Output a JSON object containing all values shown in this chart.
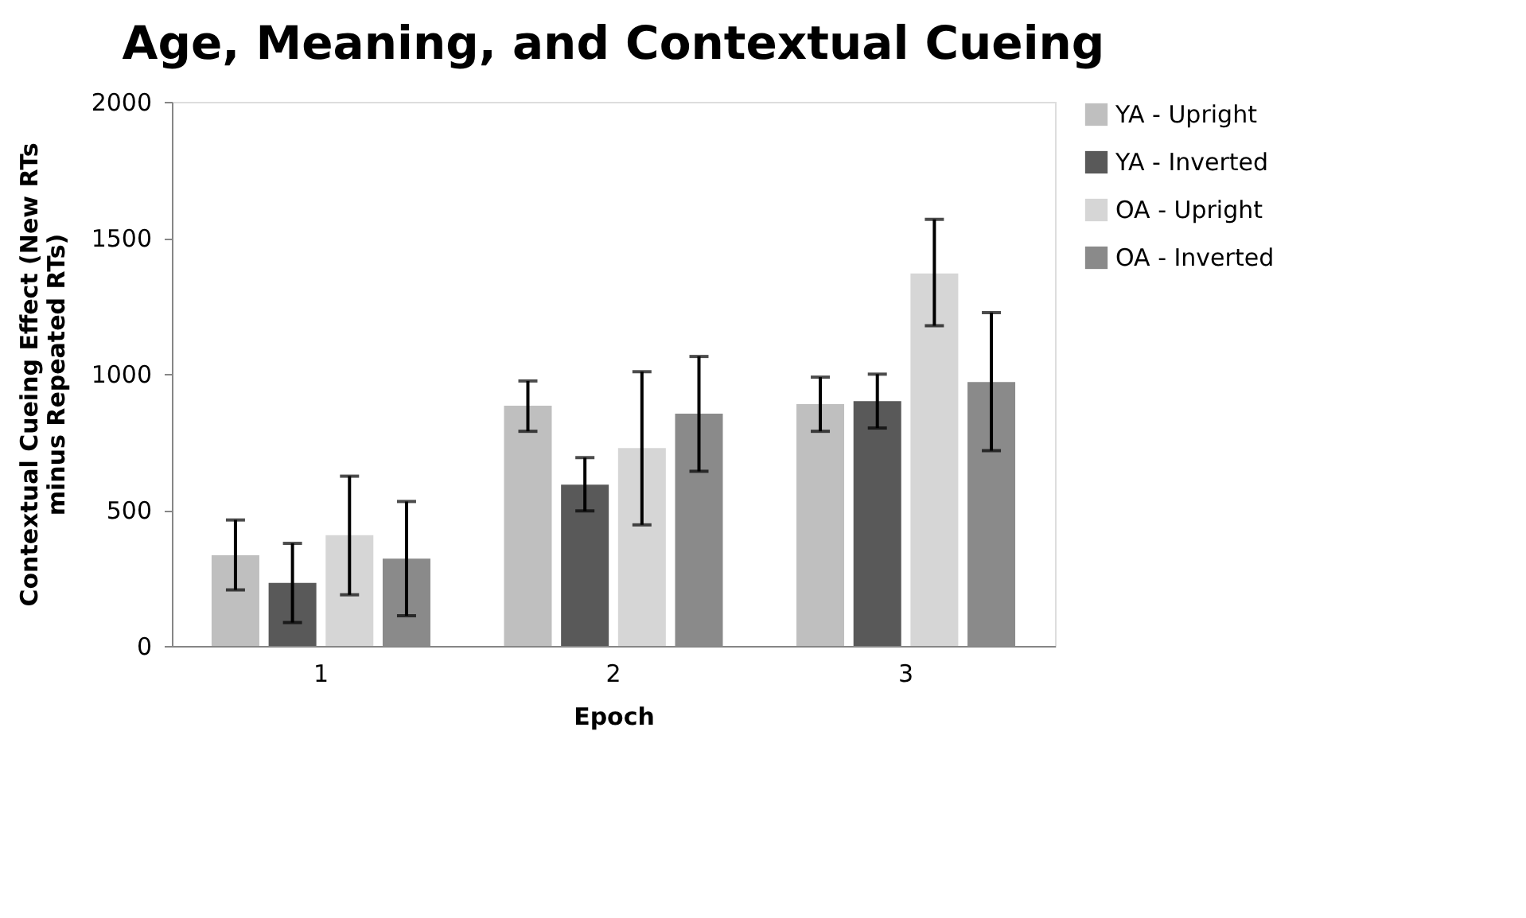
{
  "chart_data": {
    "type": "bar",
    "title": "Age, Meaning, and Contextual Cueing",
    "xlabel": "Epoch",
    "ylabel": "Contextual Cueing Effect (New RTs minus Repeated RTs)",
    "categories": [
      "1",
      "2",
      "3"
    ],
    "series": [
      {
        "name": "YA - Upright",
        "color": "#bfbfbf",
        "values": [
          333,
          883,
          889
        ],
        "errors": [
          [
            206,
            463
          ],
          [
            789,
            974
          ],
          [
            789,
            988
          ]
        ]
      },
      {
        "name": "YA - Inverted",
        "color": "#595959",
        "values": [
          232,
          593,
          900
        ],
        "errors": [
          [
            86,
            377
          ],
          [
            496,
            692
          ],
          [
            801,
            999
          ]
        ]
      },
      {
        "name": "OA - Upright",
        "color": "#d6d6d6",
        "values": [
          407,
          727,
          1369
        ],
        "errors": [
          [
            188,
            624
          ],
          [
            445,
            1008
          ],
          [
            1177,
            1568
          ]
        ]
      },
      {
        "name": "OA - Inverted",
        "color": "#8a8a8a",
        "values": [
          321,
          854,
          970
        ],
        "errors": [
          [
            111,
            531
          ],
          [
            642,
            1064
          ],
          [
            718,
            1225
          ]
        ]
      }
    ],
    "ylim": [
      0,
      2000
    ],
    "yticks": [
      0,
      500,
      1000,
      1500,
      2000
    ],
    "grid": false,
    "legend": "right"
  }
}
